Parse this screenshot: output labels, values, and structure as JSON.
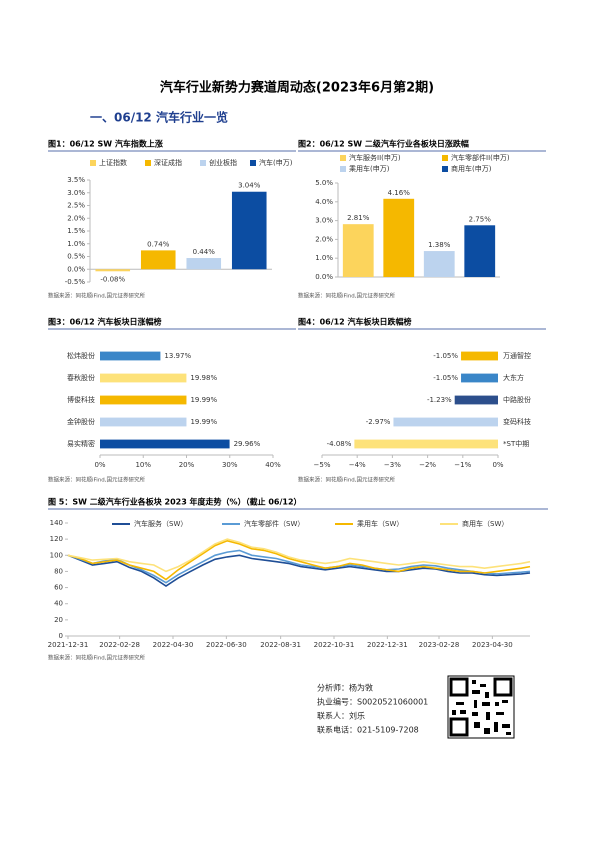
{
  "title": "汽车行业新势力赛道周动态(2023年6月第2期)",
  "section": "一、06/12 汽车行业一览",
  "chart_data": [
    {
      "type": "bar",
      "title": "图1：06/12 SW 汽车指数上涨",
      "categories": [
        "上证指数",
        "深证成指",
        "创业板指",
        "汽车(申万)"
      ],
      "values": [
        -0.08,
        0.74,
        0.44,
        3.04
      ],
      "value_labels": [
        "-0.08%",
        "0.74%",
        "0.44%",
        "3.04%"
      ],
      "colors": [
        "#fcd45c",
        "#f5b800",
        "#bcd3ee",
        "#0c4da2"
      ],
      "ylim": [
        -0.5,
        3.5
      ],
      "yticks": [
        {
          "value": -0.5,
          "label": "-0.5%"
        },
        {
          "value": 0,
          "label": "0.0%"
        },
        {
          "value": 0.5,
          "label": "0.5%"
        },
        {
          "value": 1,
          "label": "1.0%"
        },
        {
          "value": 1.5,
          "label": "1.5%"
        },
        {
          "value": 2,
          "label": "2.0%"
        },
        {
          "value": 2.5,
          "label": "2.5%"
        },
        {
          "value": 3,
          "label": "3.0%"
        },
        {
          "value": 3.5,
          "label": "3.5%"
        }
      ],
      "source": "数据来源：同花顺iFind,国元证券研究所"
    },
    {
      "type": "bar",
      "title": "图2：06/12 SW 二级汽车行业各板块日涨跌幅",
      "categories": [
        "汽车服务II(申万)",
        "汽车零部件II(申万)",
        "乘用车(申万)",
        "商用车(申万)"
      ],
      "values": [
        2.81,
        4.16,
        1.38,
        2.75
      ],
      "value_labels": [
        "2.81%",
        "4.16%",
        "1.38%",
        "2.75%"
      ],
      "colors": [
        "#fcd45c",
        "#f5b800",
        "#bcd3ee",
        "#0c4da2"
      ],
      "ylim": [
        0,
        5
      ],
      "yticks": [
        {
          "value": 0,
          "label": "0.0%"
        },
        {
          "value": 1,
          "label": "1.0%"
        },
        {
          "value": 2,
          "label": "2.0%"
        },
        {
          "value": 3,
          "label": "3.0%"
        },
        {
          "value": 4,
          "label": "4.0%"
        },
        {
          "value": 5,
          "label": "5.0%"
        }
      ],
      "source": "数据来源：同花顺iFind,国元证券研究所"
    },
    {
      "type": "bar",
      "orientation": "horizontal",
      "title": "图3：06/12 汽车板块日涨幅榜",
      "categories": [
        "松炜股份",
        "春秋股份",
        "博俊科技",
        "金钟股份",
        "易实精密"
      ],
      "values": [
        13.97,
        19.98,
        19.99,
        19.99,
        29.96
      ],
      "value_labels": [
        "13.97%",
        "19.98%",
        "19.99%",
        "19.99%",
        "29.96%"
      ],
      "colors": [
        "#3a86c8",
        "#fde27a",
        "#f5b800",
        "#bcd3ee",
        "#0c4da2"
      ],
      "xlim": [
        0,
        40
      ],
      "xticks": [
        {
          "value": 0,
          "label": "0%"
        },
        {
          "value": 10,
          "label": "10%"
        },
        {
          "value": 20,
          "label": "20%"
        },
        {
          "value": 30,
          "label": "30%"
        },
        {
          "value": 40,
          "label": "40%"
        }
      ],
      "source": "数据来源：同花顺iFind,国元证券研究所"
    },
    {
      "type": "bar",
      "orientation": "horizontal",
      "title": "图4：06/12 汽车板块日跌幅榜",
      "categories": [
        "万通智控",
        "大东方",
        "中路股份",
        "变码科技",
        "*ST中期"
      ],
      "values": [
        -1.05,
        -1.05,
        -1.23,
        -2.97,
        -4.08
      ],
      "value_labels": [
        "-1.05%",
        "-1.05%",
        "-1.23%",
        "-2.97%",
        "-4.08%"
      ],
      "colors": [
        "#f5b800",
        "#3a86c8",
        "#2c4f8c",
        "#bcd3ee",
        "#fde27a"
      ],
      "xlim": [
        -5,
        0
      ],
      "xticks": [
        {
          "value": -5,
          "label": "−5%"
        },
        {
          "value": -4,
          "label": "−4%"
        },
        {
          "value": -3,
          "label": "−3%"
        },
        {
          "value": -2,
          "label": "−2%"
        },
        {
          "value": -1,
          "label": "−1%"
        },
        {
          "value": 0,
          "label": "0%"
        }
      ],
      "source": "数据来源：同花顺iFind,国元证券研究所"
    },
    {
      "type": "line",
      "title": "图 5：SW 二级汽车行业各板块 2023 年度走势（%）（截止 06/12）",
      "x": [
        "2021-12-31",
        "2022-01-14",
        "2022-01-28",
        "2022-02-11",
        "2022-02-25",
        "2022-03-11",
        "2022-03-25",
        "2022-04-08",
        "2022-04-22",
        "2022-05-06",
        "2022-05-20",
        "2022-06-03",
        "2022-06-17",
        "2022-07-01",
        "2022-07-15",
        "2022-07-29",
        "2022-08-12",
        "2022-08-26",
        "2022-09-09",
        "2022-09-23",
        "2022-10-07",
        "2022-10-21",
        "2022-11-04",
        "2022-11-18",
        "2022-12-02",
        "2022-12-16",
        "2022-12-30",
        "2023-01-13",
        "2023-01-27",
        "2023-02-10",
        "2023-02-24",
        "2023-03-10",
        "2023-03-24",
        "2023-04-07",
        "2023-04-21",
        "2023-05-05",
        "2023-05-19",
        "2023-06-02",
        "2023-06-12"
      ],
      "series": [
        {
          "name": "汽车服务（SW）",
          "color": "#1f4e96",
          "values": [
            100,
            94,
            88,
            90,
            92,
            85,
            80,
            72,
            62,
            72,
            80,
            88,
            95,
            98,
            100,
            96,
            94,
            92,
            90,
            86,
            84,
            82,
            84,
            86,
            84,
            82,
            80,
            80,
            82,
            84,
            83,
            80,
            78,
            78,
            76,
            75,
            76,
            77,
            78
          ]
        },
        {
          "name": "汽车零部件（SW）",
          "color": "#5a9bd5",
          "values": [
            100,
            95,
            90,
            93,
            95,
            88,
            82,
            75,
            66,
            76,
            84,
            92,
            100,
            104,
            106,
            100,
            98,
            96,
            92,
            88,
            86,
            84,
            86,
            88,
            86,
            84,
            82,
            83,
            86,
            88,
            87,
            84,
            82,
            80,
            78,
            77,
            78,
            79,
            80
          ]
        },
        {
          "name": "乘用车（SW）",
          "color": "#f5b800",
          "values": [
            100,
            96,
            90,
            92,
            94,
            88,
            84,
            80,
            70,
            82,
            92,
            102,
            112,
            118,
            114,
            108,
            106,
            102,
            96,
            92,
            88,
            84,
            86,
            90,
            88,
            84,
            82,
            80,
            84,
            86,
            84,
            82,
            80,
            80,
            78,
            80,
            82,
            84,
            86
          ]
        },
        {
          "name": "商用车（SW）",
          "color": "#fde27a",
          "values": [
            100,
            97,
            94,
            95,
            96,
            92,
            90,
            88,
            80,
            86,
            94,
            104,
            114,
            120,
            116,
            110,
            108,
            104,
            98,
            94,
            92,
            90,
            92,
            96,
            94,
            92,
            90,
            88,
            90,
            92,
            90,
            88,
            86,
            86,
            84,
            86,
            88,
            90,
            92
          ]
        }
      ],
      "xlim": [
        "2021-12-31",
        "2023-06-12"
      ],
      "xticks": [
        "2021-12-31",
        "2022-02-28",
        "2022-04-30",
        "2022-06-30",
        "2022-08-31",
        "2022-10-31",
        "2022-12-31",
        "2023-02-28",
        "2023-04-30"
      ],
      "ylim": [
        0,
        140
      ],
      "yticks": [
        0,
        20,
        40,
        60,
        80,
        100,
        120,
        140
      ],
      "source": "数据来源：同花顺iFind,国元证券研究所"
    }
  ],
  "analyst": [
    "分析师：杨为敩",
    "执业编号：S0020521060001",
    "联系人：刘乐",
    "联系电话：021-5109-7208"
  ]
}
